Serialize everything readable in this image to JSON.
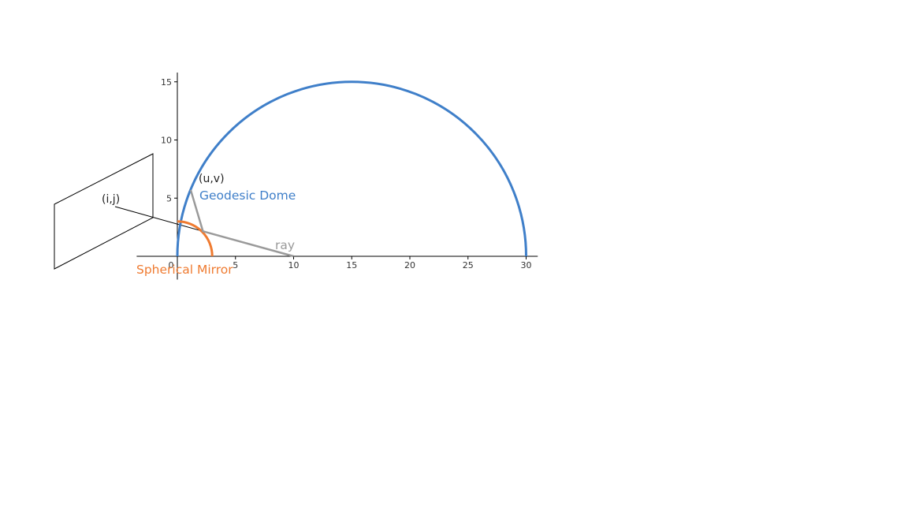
{
  "colors": {
    "dome": "#3f7fc9",
    "mirror": "#ef7b31",
    "ray": "#9a9a9a",
    "axis": "#000000",
    "projector_plane": "#000000"
  },
  "axes": {
    "x_range": [
      -3.5,
      31
    ],
    "y_range": [
      -2,
      15.8
    ],
    "x_ticks": [
      0,
      5,
      10,
      15,
      20,
      25,
      30
    ],
    "x_tick_labels": [
      "0",
      "5",
      "10",
      "15",
      "20",
      "25",
      "30"
    ],
    "y_ticks": [
      5,
      10,
      15
    ],
    "y_tick_labels": [
      "5",
      "10",
      "15"
    ]
  },
  "geometry": {
    "dome": {
      "center": [
        15,
        0
      ],
      "radius": 15,
      "type": "semicircle"
    },
    "mirror": {
      "center": [
        0,
        0
      ],
      "radius": 3,
      "type": "quarter-circle"
    },
    "ray_points": [
      [
        10,
        0
      ],
      [
        2.2,
        2.15
      ],
      [
        1.15,
        5.7
      ]
    ],
    "projector_line_end": [
      2.2,
      2.15
    ]
  },
  "labels": {
    "uv": "(u,v)",
    "ij": "(i,j)",
    "dome": "Geodesic Dome",
    "mirror": "Spherical Mirror",
    "ray": "ray"
  }
}
